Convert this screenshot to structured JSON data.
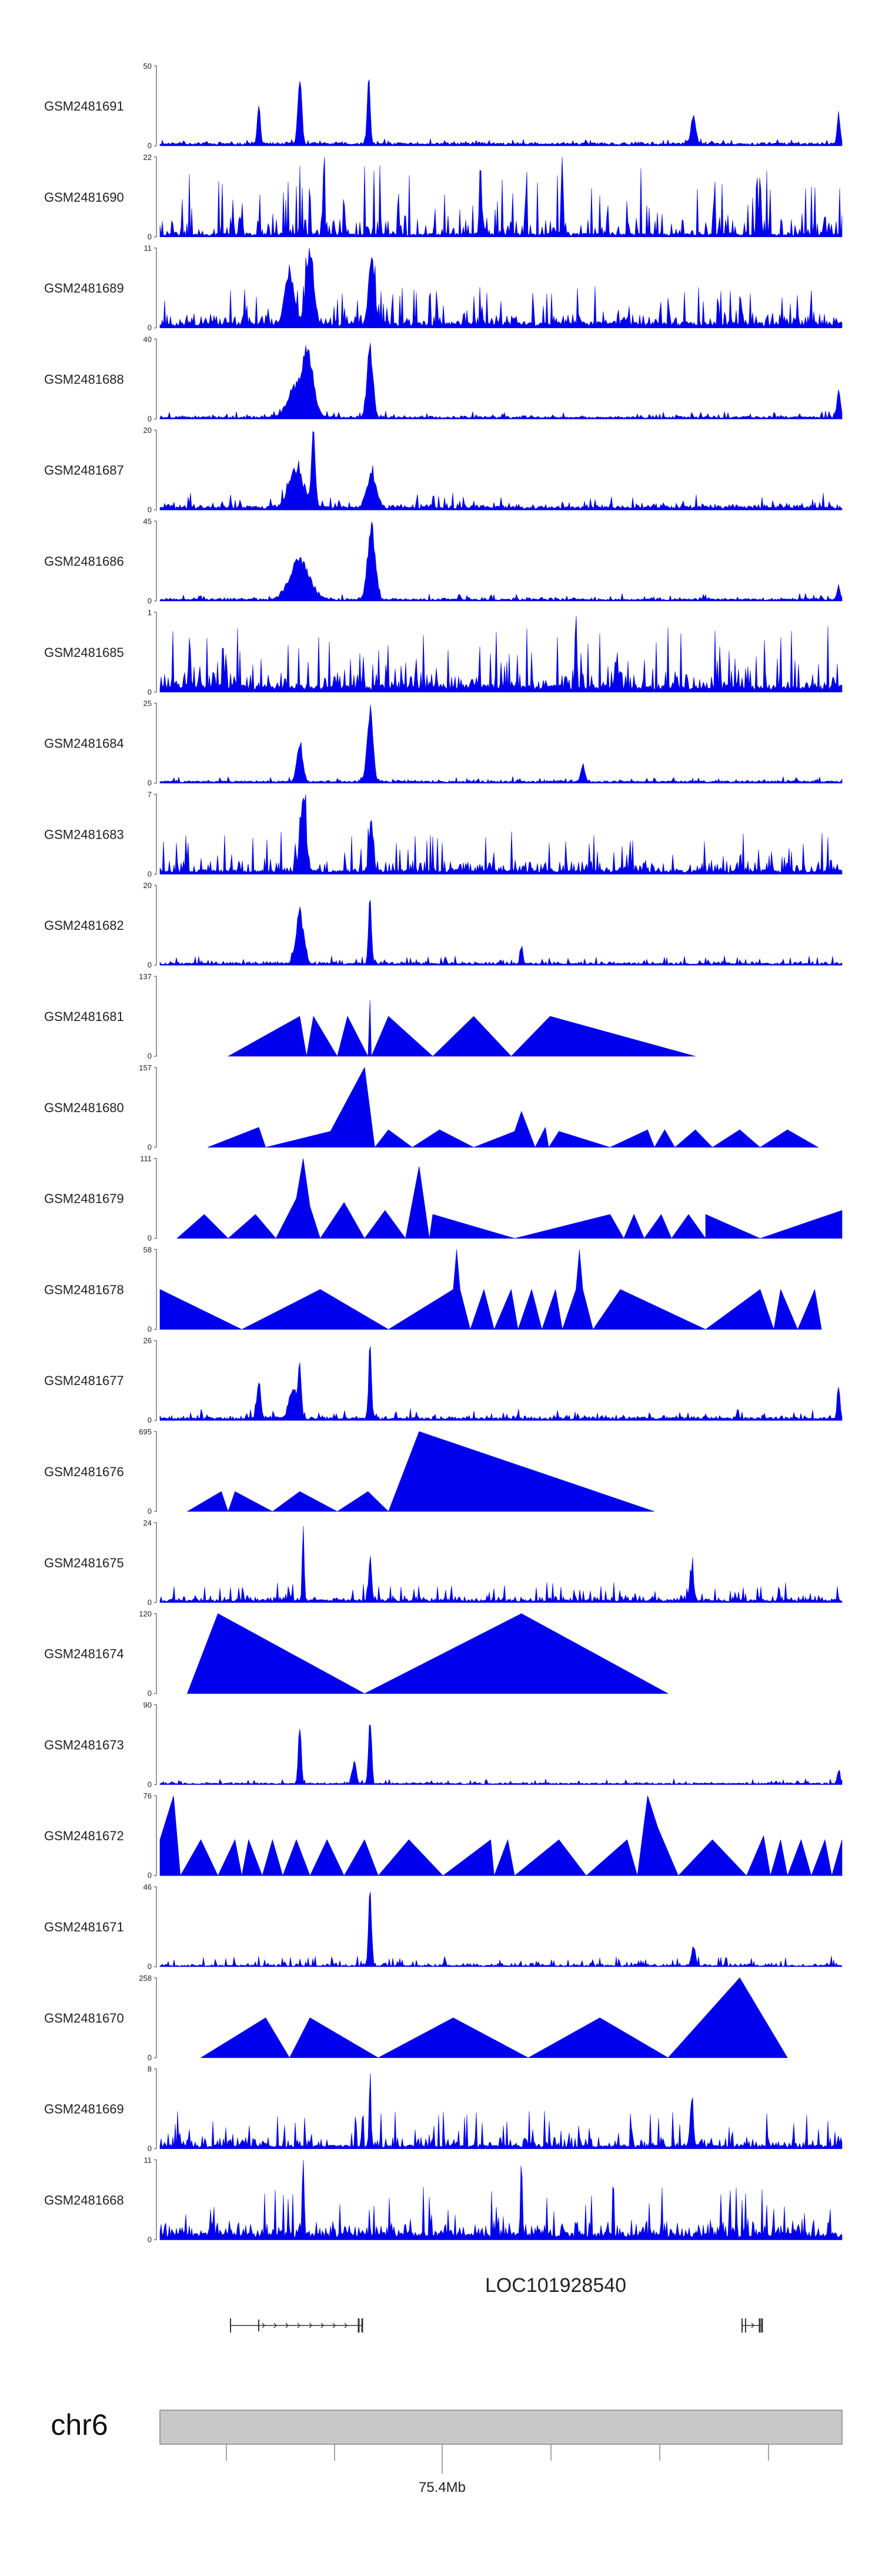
{
  "colors": {
    "signal": "#0000ee",
    "chrom_fill": "#c8c8c8",
    "chrom_stroke": "#888888",
    "text": "#222222",
    "gene": "#333333"
  },
  "chart_data": {
    "type": "area",
    "title": "",
    "tracks": [
      {
        "name": "GSM2481691",
        "ymax": "50",
        "ymin": "0",
        "style": "dense",
        "base": 0.04,
        "noise": 0.06,
        "seed": 11,
        "peaks": [
          [
            0.205,
            0.95,
            0.004
          ],
          [
            0.306,
            1.0,
            0.003
          ],
          [
            0.145,
            0.55,
            0.003
          ],
          [
            0.782,
            0.35,
            0.005
          ],
          [
            0.995,
            0.4,
            0.003
          ]
        ]
      },
      {
        "name": "GSM2481690",
        "ymax": "22",
        "ymin": "0",
        "style": "dense",
        "base": 0.05,
        "noise": 0.85,
        "seed": 23,
        "peaks": [
          [
            0.24,
            1.0,
            0.002
          ],
          [
            0.47,
            1.0,
            0.002
          ],
          [
            0.59,
            0.95,
            0.002
          ],
          [
            0.88,
            0.95,
            0.002
          ]
        ]
      },
      {
        "name": "GSM2481689",
        "ymax": "11",
        "ymin": "0",
        "style": "dense",
        "base": 0.08,
        "noise": 0.45,
        "seed": 37,
        "peaks": [
          [
            0.22,
            1.0,
            0.008
          ],
          [
            0.31,
            0.95,
            0.006
          ],
          [
            0.19,
            0.7,
            0.01
          ]
        ]
      },
      {
        "name": "GSM2481688",
        "ymax": "40",
        "ymin": "0",
        "style": "dense",
        "base": 0.03,
        "noise": 0.08,
        "seed": 41,
        "peaks": [
          [
            0.205,
            0.5,
            0.02
          ],
          [
            0.218,
            0.6,
            0.01
          ],
          [
            0.308,
            1.0,
            0.006
          ],
          [
            0.995,
            0.35,
            0.004
          ]
        ]
      },
      {
        "name": "GSM2481687",
        "ymax": "20",
        "ymin": "0",
        "style": "dense",
        "base": 0.05,
        "noise": 0.18,
        "seed": 53,
        "peaks": [
          [
            0.2,
            0.55,
            0.015
          ],
          [
            0.225,
            1.0,
            0.004
          ],
          [
            0.31,
            0.45,
            0.01
          ]
        ]
      },
      {
        "name": "GSM2481686",
        "ymax": "45",
        "ymin": "0",
        "style": "dense",
        "base": 0.03,
        "noise": 0.07,
        "seed": 61,
        "peaks": [
          [
            0.205,
            0.55,
            0.02
          ],
          [
            0.31,
            1.0,
            0.008
          ],
          [
            0.995,
            0.2,
            0.003
          ]
        ]
      },
      {
        "name": "GSM2481685",
        "ymax": "1",
        "ymin": "0",
        "style": "dense",
        "base": 0.1,
        "noise": 0.75,
        "seed": 71,
        "peaks": [
          [
            0.61,
            1.0,
            0.002
          ]
        ]
      },
      {
        "name": "GSM2481684",
        "ymax": "25",
        "ymin": "0",
        "style": "dense",
        "base": 0.03,
        "noise": 0.06,
        "seed": 83,
        "peaks": [
          [
            0.205,
            0.55,
            0.006
          ],
          [
            0.308,
            1.0,
            0.006
          ],
          [
            0.62,
            0.25,
            0.004
          ]
        ]
      },
      {
        "name": "GSM2481683",
        "ymax": "7",
        "ymin": "0",
        "style": "dense",
        "base": 0.06,
        "noise": 0.5,
        "seed": 97,
        "peaks": [
          [
            0.21,
            1.0,
            0.006
          ],
          [
            0.31,
            0.7,
            0.004
          ]
        ]
      },
      {
        "name": "GSM2481682",
        "ymax": "20",
        "ymin": "0",
        "style": "dense",
        "base": 0.03,
        "noise": 0.1,
        "seed": 101,
        "peaks": [
          [
            0.205,
            0.7,
            0.008
          ],
          [
            0.308,
            1.0,
            0.003
          ],
          [
            0.53,
            0.2,
            0.003
          ]
        ]
      },
      {
        "name": "GSM2481681",
        "ymax": "137",
        "ymin": "0",
        "style": "tri",
        "points": [
          [
            0.1,
            0
          ],
          [
            0.205,
            0.5
          ],
          [
            0.215,
            0
          ],
          [
            0.225,
            0.5
          ],
          [
            0.26,
            0
          ],
          [
            0.275,
            0.5
          ],
          [
            0.305,
            0
          ],
          [
            0.308,
            0.7
          ],
          [
            0.31,
            0
          ],
          [
            0.335,
            0.5
          ],
          [
            0.4,
            0
          ],
          [
            0.46,
            0.5
          ],
          [
            0.515,
            0
          ],
          [
            0.572,
            0.5
          ],
          [
            0.785,
            0
          ]
        ]
      },
      {
        "name": "GSM2481680",
        "ymax": "157",
        "ymin": "0",
        "style": "tri",
        "points": [
          [
            0.07,
            0
          ],
          [
            0.145,
            0.25
          ],
          [
            0.155,
            0
          ],
          [
            0.25,
            0.2
          ],
          [
            0.3,
            1.0
          ],
          [
            0.315,
            0
          ],
          [
            0.335,
            0.22
          ],
          [
            0.37,
            0
          ],
          [
            0.41,
            0.22
          ],
          [
            0.46,
            0
          ],
          [
            0.52,
            0.2
          ],
          [
            0.53,
            0.45
          ],
          [
            0.55,
            0
          ],
          [
            0.565,
            0.25
          ],
          [
            0.57,
            0
          ],
          [
            0.585,
            0.2
          ],
          [
            0.66,
            0
          ],
          [
            0.715,
            0.22
          ],
          [
            0.725,
            0
          ],
          [
            0.74,
            0.22
          ],
          [
            0.755,
            0
          ],
          [
            0.785,
            0.22
          ],
          [
            0.81,
            0
          ],
          [
            0.85,
            0.22
          ],
          [
            0.88,
            0
          ],
          [
            0.92,
            0.22
          ],
          [
            0.965,
            0
          ]
        ]
      },
      {
        "name": "GSM2481679",
        "ymax": "111",
        "ymin": "0",
        "style": "tri",
        "points": [
          [
            0.025,
            0
          ],
          [
            0.065,
            0.3
          ],
          [
            0.1,
            0
          ],
          [
            0.14,
            0.3
          ],
          [
            0.17,
            0
          ],
          [
            0.2,
            0.5
          ],
          [
            0.21,
            1.0
          ],
          [
            0.22,
            0.4
          ],
          [
            0.235,
            0
          ],
          [
            0.27,
            0.45
          ],
          [
            0.3,
            0
          ],
          [
            0.33,
            0.35
          ],
          [
            0.36,
            0
          ],
          [
            0.38,
            0.9
          ],
          [
            0.395,
            0
          ],
          [
            0.4,
            0.3
          ],
          [
            0.52,
            0
          ],
          [
            0.66,
            0.3
          ],
          [
            0.68,
            0
          ],
          [
            0.695,
            0.3
          ],
          [
            0.71,
            0
          ],
          [
            0.735,
            0.3
          ],
          [
            0.75,
            0
          ],
          [
            0.775,
            0.3
          ],
          [
            0.8,
            0
          ],
          [
            0.8,
            0.3
          ],
          [
            0.88,
            0
          ],
          [
            1.0,
            0.35
          ]
        ]
      },
      {
        "name": "GSM2481678",
        "ymax": "58",
        "ymin": "0",
        "style": "tri",
        "points": [
          [
            0.0,
            0
          ],
          [
            0.0,
            0.5
          ],
          [
            0.12,
            0
          ],
          [
            0.235,
            0.5
          ],
          [
            0.335,
            0
          ],
          [
            0.43,
            0.5
          ],
          [
            0.435,
            1.0
          ],
          [
            0.44,
            0.5
          ],
          [
            0.455,
            0
          ],
          [
            0.475,
            0.5
          ],
          [
            0.49,
            0
          ],
          [
            0.515,
            0.5
          ],
          [
            0.525,
            0
          ],
          [
            0.545,
            0.5
          ],
          [
            0.56,
            0
          ],
          [
            0.58,
            0.5
          ],
          [
            0.59,
            0
          ],
          [
            0.61,
            0.5
          ],
          [
            0.615,
            1.0
          ],
          [
            0.62,
            0.5
          ],
          [
            0.635,
            0
          ],
          [
            0.675,
            0.5
          ],
          [
            0.8,
            0
          ],
          [
            0.88,
            0.5
          ],
          [
            0.9,
            0
          ],
          [
            0.91,
            0.5
          ],
          [
            0.935,
            0
          ],
          [
            0.96,
            0.5
          ],
          [
            0.97,
            0
          ]
        ]
      },
      {
        "name": "GSM2481677",
        "ymax": "26",
        "ymin": "0",
        "style": "dense",
        "base": 0.04,
        "noise": 0.12,
        "seed": 131,
        "peaks": [
          [
            0.145,
            0.5,
            0.004
          ],
          [
            0.205,
            0.8,
            0.003
          ],
          [
            0.308,
            1.0,
            0.003
          ],
          [
            0.195,
            0.4,
            0.008
          ],
          [
            0.995,
            0.4,
            0.003
          ]
        ]
      },
      {
        "name": "GSM2481676",
        "ymax": "695",
        "ymin": "0",
        "style": "tri",
        "points": [
          [
            0.04,
            0
          ],
          [
            0.09,
            0.25
          ],
          [
            0.1,
            0
          ],
          [
            0.11,
            0.25
          ],
          [
            0.165,
            0
          ],
          [
            0.205,
            0.25
          ],
          [
            0.26,
            0
          ],
          [
            0.305,
            0.25
          ],
          [
            0.335,
            0
          ],
          [
            0.38,
            1.0
          ],
          [
            0.725,
            0
          ]
        ]
      },
      {
        "name": "GSM2481675",
        "ymax": "24",
        "ymin": "0",
        "style": "dense",
        "base": 0.04,
        "noise": 0.22,
        "seed": 149,
        "peaks": [
          [
            0.21,
            1.0,
            0.002
          ],
          [
            0.308,
            0.6,
            0.003
          ],
          [
            0.78,
            0.45,
            0.004
          ]
        ]
      },
      {
        "name": "GSM2481674",
        "ymax": "120",
        "ymin": "0",
        "style": "tri",
        "points": [
          [
            0.04,
            0
          ],
          [
            0.085,
            1.0
          ],
          [
            0.3,
            0
          ],
          [
            0.53,
            1.0
          ],
          [
            0.745,
            0
          ]
        ]
      },
      {
        "name": "GSM2481673",
        "ymax": "90",
        "ymin": "0",
        "style": "dense",
        "base": 0.02,
        "noise": 0.06,
        "seed": 167,
        "peaks": [
          [
            0.205,
            0.8,
            0.003
          ],
          [
            0.308,
            1.0,
            0.003
          ],
          [
            0.285,
            0.3,
            0.004
          ],
          [
            0.995,
            0.2,
            0.003
          ]
        ]
      },
      {
        "name": "GSM2481672",
        "ymax": "76",
        "ymin": "0",
        "style": "tri",
        "points": [
          [
            0.0,
            0
          ],
          [
            0.0,
            0.45
          ],
          [
            0.02,
            1.0
          ],
          [
            0.03,
            0
          ],
          [
            0.06,
            0.45
          ],
          [
            0.085,
            0
          ],
          [
            0.11,
            0.45
          ],
          [
            0.12,
            0
          ],
          [
            0.13,
            0.45
          ],
          [
            0.15,
            0
          ],
          [
            0.165,
            0.45
          ],
          [
            0.18,
            0
          ],
          [
            0.2,
            0.45
          ],
          [
            0.22,
            0
          ],
          [
            0.245,
            0.45
          ],
          [
            0.27,
            0
          ],
          [
            0.3,
            0.45
          ],
          [
            0.32,
            0
          ],
          [
            0.365,
            0.45
          ],
          [
            0.415,
            0
          ],
          [
            0.485,
            0.45
          ],
          [
            0.49,
            0
          ],
          [
            0.51,
            0.45
          ],
          [
            0.52,
            0
          ],
          [
            0.585,
            0.45
          ],
          [
            0.625,
            0
          ],
          [
            0.685,
            0.45
          ],
          [
            0.7,
            0
          ],
          [
            0.715,
            1.0
          ],
          [
            0.73,
            0.6
          ],
          [
            0.76,
            0
          ],
          [
            0.81,
            0.45
          ],
          [
            0.86,
            0
          ],
          [
            0.885,
            0.5
          ],
          [
            0.895,
            0
          ],
          [
            0.91,
            0.45
          ],
          [
            0.92,
            0
          ],
          [
            0.94,
            0.45
          ],
          [
            0.955,
            0
          ],
          [
            0.975,
            0.45
          ],
          [
            0.985,
            0
          ],
          [
            1.0,
            0.45
          ]
        ]
      },
      {
        "name": "GSM2481671",
        "ymax": "46",
        "ymin": "0",
        "style": "dense",
        "base": 0.02,
        "noise": 0.12,
        "seed": 181,
        "peaks": [
          [
            0.308,
            1.0,
            0.003
          ],
          [
            0.782,
            0.3,
            0.004
          ]
        ]
      },
      {
        "name": "GSM2481670",
        "ymax": "258",
        "ymin": "0",
        "style": "tri",
        "points": [
          [
            0.06,
            0
          ],
          [
            0.155,
            0.5
          ],
          [
            0.19,
            0
          ],
          [
            0.22,
            0.5
          ],
          [
            0.32,
            0
          ],
          [
            0.43,
            0.5
          ],
          [
            0.54,
            0
          ],
          [
            0.645,
            0.5
          ],
          [
            0.745,
            0
          ],
          [
            0.85,
            1.0
          ],
          [
            0.92,
            0
          ]
        ]
      },
      {
        "name": "GSM2481669",
        "ymax": "8",
        "ymin": "0",
        "style": "dense",
        "base": 0.05,
        "noise": 0.45,
        "seed": 199,
        "peaks": [
          [
            0.308,
            1.0,
            0.002
          ],
          [
            0.78,
            0.75,
            0.003
          ]
        ]
      },
      {
        "name": "GSM2481668",
        "ymax": "11",
        "ymin": "0",
        "style": "dense",
        "base": 0.1,
        "noise": 0.6,
        "seed": 211,
        "peaks": [
          [
            0.21,
            1.0,
            0.002
          ],
          [
            0.53,
            0.95,
            0.002
          ]
        ]
      }
    ],
    "gene": {
      "name": "LOC101928540"
    },
    "chromosome": {
      "name": "chr6",
      "tick_label": "75.4Mb"
    }
  }
}
